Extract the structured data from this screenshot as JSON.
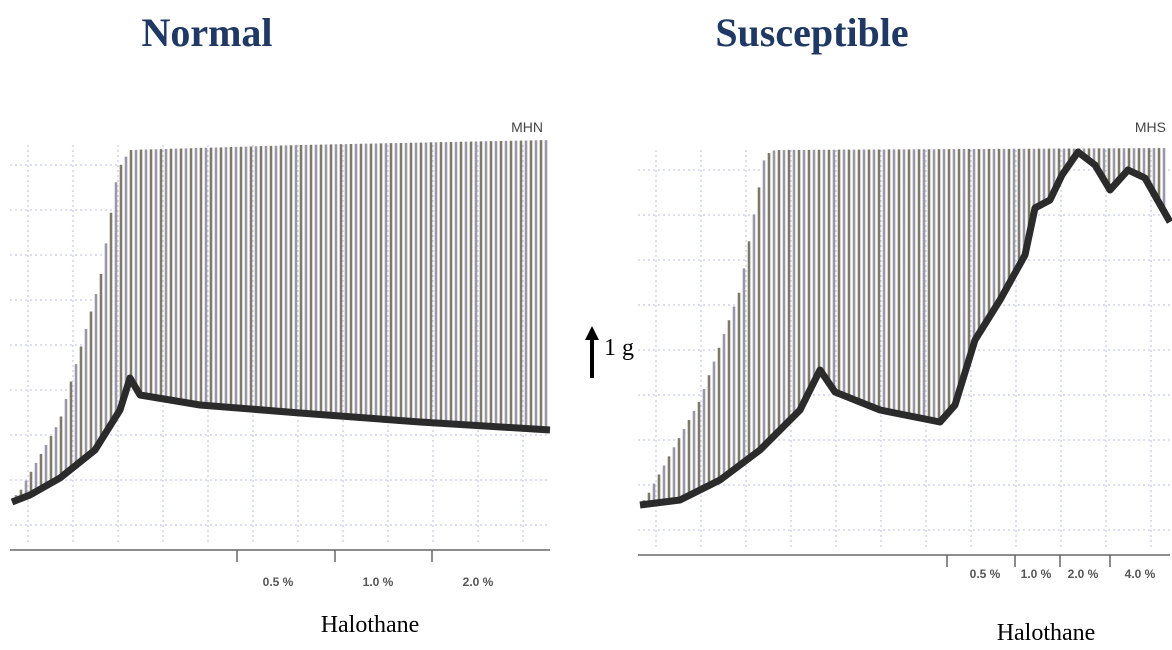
{
  "panels": [
    {
      "title": "Normal",
      "label": "MHN",
      "doses": [
        "0.5 %",
        "1.0 %",
        "2.0 %"
      ],
      "axis_label": "Halothane"
    },
    {
      "title": "Susceptible",
      "label": "MHS",
      "doses": [
        "0.5 %",
        "1.0 %",
        "2.0 %",
        "4.0 %"
      ],
      "axis_label": "Halothane"
    }
  ],
  "scale_label": "1 g"
}
